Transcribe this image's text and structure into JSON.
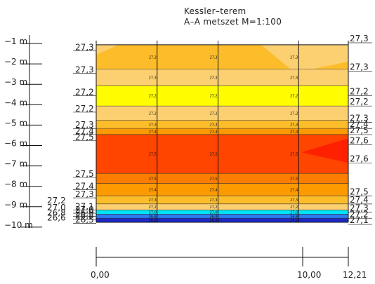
{
  "header": {
    "title": "Kessler–terem",
    "subtitle": "A–A metszet M=1:100"
  },
  "chart_data": {
    "type": "heatmap",
    "title": "Kessler–terem",
    "subtitle": "A–A metszet M=1:100",
    "x_axis": {
      "ticks": [
        "0,00",
        "10,00",
        "12,21"
      ],
      "range": [
        0,
        12.21
      ],
      "gridlines": [
        0,
        2.95,
        5.9,
        9.8,
        12.21
      ]
    },
    "y_axis": {
      "unit": "m",
      "ticks": [
        {
          "value": -1,
          "label": "−1 m"
        },
        {
          "value": -2,
          "label": "−2 m"
        },
        {
          "value": -3,
          "label": "−3 m"
        },
        {
          "value": -4,
          "label": "−4 m"
        },
        {
          "value": -5,
          "label": "−5 m"
        },
        {
          "value": -6,
          "label": "−6 m"
        },
        {
          "value": -7,
          "label": "−7 m"
        },
        {
          "value": -8,
          "label": "−8 m"
        },
        {
          "value": -9,
          "label": "−9 m"
        },
        {
          "value": -10,
          "label": "−10 m"
        }
      ],
      "range": [
        -1.2,
        -9.9
      ]
    },
    "bands": [
      {
        "y_top": -1.2,
        "y_bottom": -2.4,
        "value": "27,3",
        "color": "#fdbd2b"
      },
      {
        "y_top": -2.4,
        "y_bottom": -3.2,
        "value": "27,3",
        "color": "#fcd070"
      },
      {
        "y_top": -3.2,
        "y_bottom": -4.2,
        "value": "27,2",
        "color": "#fffd00"
      },
      {
        "y_top": -4.2,
        "y_bottom": -4.9,
        "value": "27,2",
        "color": "#fcd070"
      },
      {
        "y_top": -4.9,
        "y_bottom": -5.3,
        "value": "27,3",
        "color": "#fdbd2b"
      },
      {
        "y_top": -5.3,
        "y_bottom": -5.6,
        "value": "27,4",
        "color": "#fc9a00"
      },
      {
        "y_top": -5.6,
        "y_bottom": -7.5,
        "value": "27,5",
        "color": "#ff4500"
      },
      {
        "y_top": -7.5,
        "y_bottom": -8.0,
        "value": "27,5",
        "color": "#fc7d00"
      },
      {
        "y_top": -8.0,
        "y_bottom": -8.6,
        "value": "27,4",
        "color": "#fc9a00"
      },
      {
        "y_top": -8.6,
        "y_bottom": -9.0,
        "value": "27,3",
        "color": "#fdbd2b"
      },
      {
        "y_top": -9.0,
        "y_bottom": -9.3,
        "value": "27,2",
        "color": "#fcd070"
      },
      {
        "y_top": -9.3,
        "y_bottom": -9.5,
        "value": "27,0",
        "color": "#00e5f5"
      },
      {
        "y_top": -9.5,
        "y_bottom": -9.7,
        "value": "26,8",
        "color": "#2a7cf0"
      },
      {
        "y_top": -9.7,
        "y_bottom": -9.9,
        "value": "26,6",
        "color": "#1c28c8"
      }
    ],
    "hot_region": {
      "value": "27,6",
      "color": "#ff2000"
    },
    "left_labels": [
      {
        "y": -1.4,
        "text": "27,3"
      },
      {
        "y": -2.5,
        "text": "27,3"
      },
      {
        "y": -3.6,
        "text": "27,2"
      },
      {
        "y": -4.4,
        "text": "27,2"
      },
      {
        "y": -5.2,
        "text": "27,3"
      },
      {
        "y": -5.5,
        "text": "27,4"
      },
      {
        "y": -5.8,
        "text": "27,5"
      },
      {
        "y": -7.6,
        "text": "27,5"
      },
      {
        "y": -8.2,
        "text": "27,4"
      },
      {
        "y": -8.6,
        "text": "27,3"
      },
      {
        "y": -9.2,
        "text": "27,1"
      },
      {
        "y": -9.35,
        "text": "27,0"
      },
      {
        "y": -9.5,
        "text": "26,9"
      },
      {
        "y": -9.65,
        "text": "26,8"
      },
      {
        "y": -9.85,
        "text": "26,5"
      }
    ],
    "far_left_labels": [
      {
        "y": -8.9,
        "text": "27,2"
      },
      {
        "y": -9.25,
        "text": "27,0"
      },
      {
        "y": -9.5,
        "text": "26,8"
      },
      {
        "y": -9.75,
        "text": "26,6"
      }
    ],
    "right_labels": [
      {
        "y": -1.0,
        "text": "27,3"
      },
      {
        "y": -2.4,
        "text": "27,3"
      },
      {
        "y": -3.6,
        "text": "27,2"
      },
      {
        "y": -4.1,
        "text": "27,2"
      },
      {
        "y": -4.9,
        "text": "27,3"
      },
      {
        "y": -5.2,
        "text": "27,4"
      },
      {
        "y": -5.5,
        "text": "27,5"
      },
      {
        "y": -6.0,
        "text": "27,6"
      },
      {
        "y": -6.9,
        "text": "27,6"
      },
      {
        "y": -8.5,
        "text": "27,5"
      },
      {
        "y": -8.9,
        "text": "27,4"
      },
      {
        "y": -9.3,
        "text": "27,3"
      },
      {
        "y": -9.6,
        "text": "27,2"
      },
      {
        "y": -9.9,
        "text": "27,1"
      }
    ],
    "grid": true
  }
}
